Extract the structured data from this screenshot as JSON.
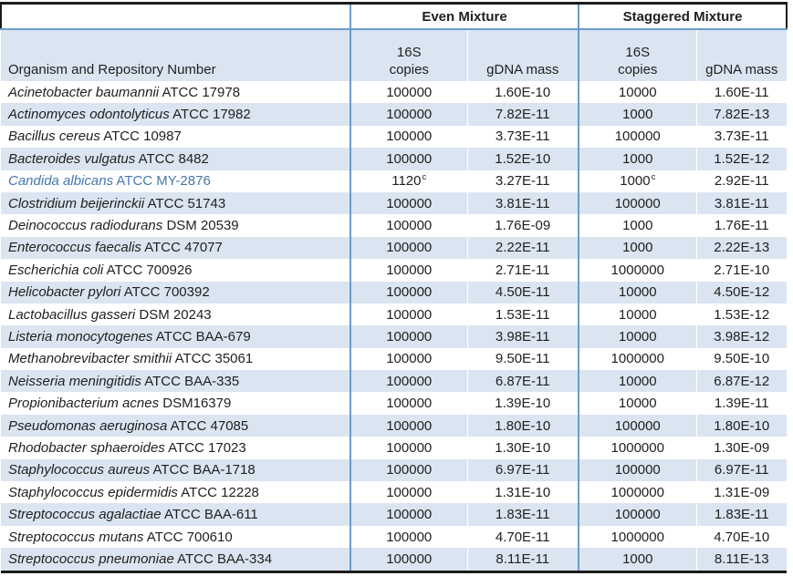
{
  "table": {
    "group_headers": [
      "Even Mixture",
      "Staggered Mixture"
    ],
    "organism_header": "Organism and Repository Number",
    "subheaders": {
      "copies_line1": "16S",
      "copies_line2": "copies",
      "gdna": "gDNA mass"
    },
    "rows": [
      {
        "name": "Acinetobacter baumannii",
        "repo": "ATCC 17978",
        "even_16s": "100000",
        "even_gdna": "1.60E-10",
        "stag_16s": "10000",
        "stag_gdna": "1.60E-11"
      },
      {
        "name": "Actinomyces odontolyticus",
        "repo": "ATCC 17982",
        "even_16s": "100000",
        "even_gdna": "7.82E-11",
        "stag_16s": "1000",
        "stag_gdna": "7.82E-13"
      },
      {
        "name": "Bacillus cereus",
        "repo": "ATCC 10987",
        "even_16s": "100000",
        "even_gdna": "3.73E-11",
        "stag_16s": "100000",
        "stag_gdna": "3.73E-11"
      },
      {
        "name": "Bacteroides vulgatus",
        "repo": "ATCC 8482",
        "even_16s": "100000",
        "even_gdna": "1.52E-10",
        "stag_16s": "1000",
        "stag_gdna": "1.52E-12"
      },
      {
        "name": "Candida albicans",
        "repo": "ATCC MY-2876",
        "even_16s": "1120",
        "even_16s_sup": "c",
        "even_gdna": "3.27E-11",
        "stag_16s": "1000",
        "stag_16s_sup": "c",
        "stag_gdna": "2.92E-11",
        "highlight": true
      },
      {
        "name": "Clostridium beijerinckii",
        "repo": "ATCC 51743",
        "even_16s": "100000",
        "even_gdna": "3.81E-11",
        "stag_16s": "100000",
        "stag_gdna": "3.81E-11"
      },
      {
        "name": "Deinococcus radiodurans",
        "repo": "DSM 20539",
        "even_16s": "100000",
        "even_gdna": "1.76E-09",
        "stag_16s": "1000",
        "stag_gdna": "1.76E-11"
      },
      {
        "name": "Enterococcus faecalis",
        "repo": "ATCC 47077",
        "even_16s": "100000",
        "even_gdna": "2.22E-11",
        "stag_16s": "1000",
        "stag_gdna": "2.22E-13"
      },
      {
        "name": "Escherichia coli",
        "repo": "ATCC 700926",
        "even_16s": "100000",
        "even_gdna": "2.71E-11",
        "stag_16s": "1000000",
        "stag_gdna": "2.71E-10"
      },
      {
        "name": "Helicobacter pylori",
        "repo": "ATCC 700392",
        "even_16s": "100000",
        "even_gdna": "4.50E-11",
        "stag_16s": "10000",
        "stag_gdna": "4.50E-12"
      },
      {
        "name": "Lactobacillus gasseri",
        "repo": "DSM 20243",
        "even_16s": "100000",
        "even_gdna": "1.53E-11",
        "stag_16s": "10000",
        "stag_gdna": "1.53E-12"
      },
      {
        "name": "Listeria monocytogenes",
        "repo": "ATCC BAA-679",
        "even_16s": "100000",
        "even_gdna": "3.98E-11",
        "stag_16s": "10000",
        "stag_gdna": "3.98E-12"
      },
      {
        "name": "Methanobrevibacter smithii",
        "repo": "ATCC 35061",
        "even_16s": "100000",
        "even_gdna": "9.50E-11",
        "stag_16s": "1000000",
        "stag_gdna": "9.50E-10"
      },
      {
        "name": "Neisseria meningitidis",
        "repo": "ATCC BAA-335",
        "even_16s": "100000",
        "even_gdna": "6.87E-11",
        "stag_16s": "10000",
        "stag_gdna": "6.87E-12"
      },
      {
        "name": "Propionibacterium acnes",
        "repo": "DSM16379",
        "even_16s": "100000",
        "even_gdna": "1.39E-10",
        "stag_16s": "10000",
        "stag_gdna": "1.39E-11"
      },
      {
        "name": "Pseudomonas aeruginosa",
        "repo": "ATCC 47085",
        "even_16s": "100000",
        "even_gdna": "1.80E-10",
        "stag_16s": "100000",
        "stag_gdna": "1.80E-10"
      },
      {
        "name": "Rhodobacter sphaeroides",
        "repo": "ATCC 17023",
        "even_16s": "100000",
        "even_gdna": "1.30E-10",
        "stag_16s": "1000000",
        "stag_gdna": "1.30E-09"
      },
      {
        "name": "Staphylococcus aureus",
        "repo": "ATCC BAA-1718",
        "even_16s": "100000",
        "even_gdna": "6.97E-11",
        "stag_16s": "100000",
        "stag_gdna": "6.97E-11"
      },
      {
        "name": "Staphylococcus epidermidis",
        "repo": "ATCC 12228",
        "even_16s": "100000",
        "even_gdna": "1.31E-10",
        "stag_16s": "1000000",
        "stag_gdna": "1.31E-09"
      },
      {
        "name": "Streptococcus agalactiae",
        "repo": "ATCC BAA-611",
        "even_16s": "100000",
        "even_gdna": "1.83E-11",
        "stag_16s": "100000",
        "stag_gdna": "1.83E-11"
      },
      {
        "name": "Streptococcus mutans",
        "repo": "ATCC 700610",
        "even_16s": "100000",
        "even_gdna": "4.70E-11",
        "stag_16s": "1000000",
        "stag_gdna": "4.70E-10"
      },
      {
        "name": "Streptococcus pneumoniae",
        "repo": "ATCC BAA-334",
        "even_16s": "100000",
        "even_gdna": "8.11E-11",
        "stag_16s": "1000",
        "stag_gdna": "8.11E-13"
      }
    ]
  },
  "colors": {
    "row_shade": "#dbe5f1",
    "rule_blue": "#6b9ccc",
    "border_dark": "#1c1c1c",
    "highlight_text": "#4677ae"
  }
}
